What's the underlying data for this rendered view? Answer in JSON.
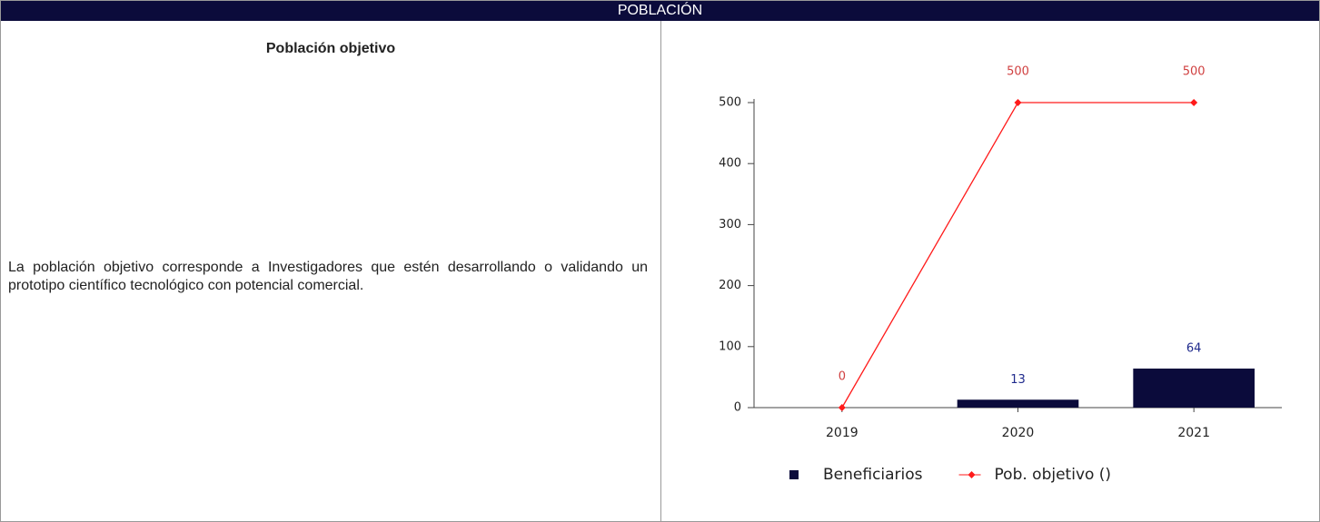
{
  "header": {
    "title": "POBLACIÓN"
  },
  "left": {
    "heading": "Población objetivo",
    "text": "La población objetivo corresponde a Investigadores que estén desarrollando o validando un prototipo científico tecnológico con potencial comercial."
  },
  "chart_data": {
    "type": "bar_line",
    "categories": [
      "2019",
      "2020",
      "2021"
    ],
    "series": [
      {
        "name": "Beneficiarios",
        "type": "bar",
        "color": "#0b0b3b",
        "label_color": "#1f2a8c",
        "values": [
          null,
          13,
          64
        ]
      },
      {
        "name": "Pob. objetivo ()",
        "type": "line",
        "color": "#ff1a1a",
        "label_color": "#d04040",
        "values": [
          0,
          500,
          500
        ]
      }
    ],
    "ylim": [
      0,
      500
    ],
    "yticks": [
      0,
      100,
      200,
      300,
      400,
      500
    ],
    "legend": "bottom"
  }
}
